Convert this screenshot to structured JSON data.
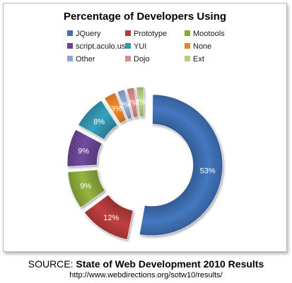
{
  "chart_data": {
    "type": "pie",
    "variant": "doughnut",
    "title": "Percentage of Developers Using",
    "categories": [
      "JQuery",
      "Prototype",
      "Mootools",
      "script.aculo.us",
      "YUI",
      "None",
      "Other",
      "Dojo",
      "Ext"
    ],
    "values": [
      53,
      12,
      9,
      9,
      8,
      3,
      2,
      2,
      2
    ],
    "labels": [
      "53%",
      "12%",
      "9%",
      "9%",
      "8%",
      "3%",
      "2%",
      "2%",
      "2%"
    ],
    "colors": [
      "#3f6fb3",
      "#b43a3a",
      "#8aa83a",
      "#6a4594",
      "#3296b0",
      "#e8832a",
      "#8ea6d1",
      "#d98a8a",
      "#b6cd84"
    ],
    "legend_position": "top",
    "grid": false
  },
  "source": {
    "prefix": "SOURCE: ",
    "name": "State of Web Development 2010 Results",
    "url": "http://www.webdirections.org/sotw10/results/"
  }
}
